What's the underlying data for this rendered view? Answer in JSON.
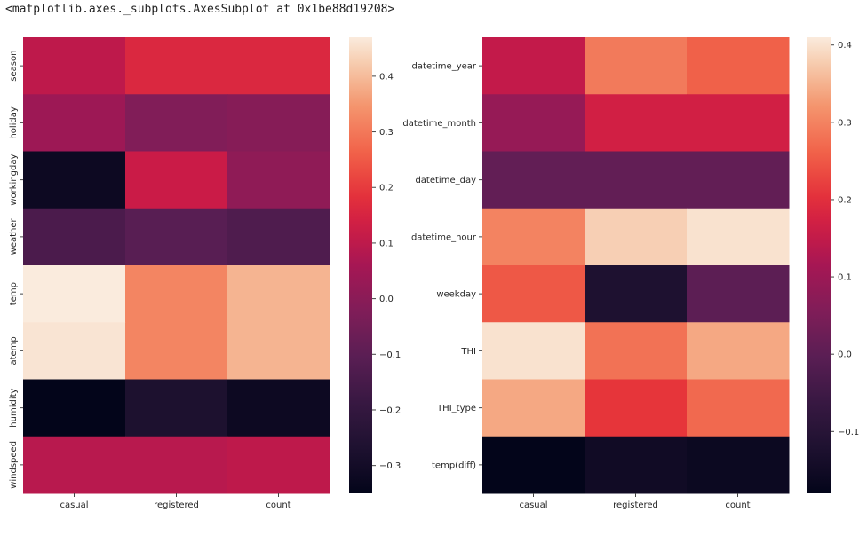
{
  "output_text": "<matplotlib.axes._subplots.AxesSubplot at 0x1be88d19208>",
  "colormap": "rocket",
  "chart_data": [
    {
      "type": "heatmap",
      "title": "",
      "x_categories": [
        "casual",
        "registered",
        "count"
      ],
      "y_categories": [
        "season",
        "holiday",
        "workingday",
        "weather",
        "temp",
        "atemp",
        "humidity",
        "windspeed"
      ],
      "values": [
        [
          0.1,
          0.16,
          0.16
        ],
        [
          0.04,
          -0.02,
          -0.01
        ],
        [
          -0.32,
          0.12,
          0.01
        ],
        [
          -0.14,
          -0.11,
          -0.13
        ],
        [
          0.47,
          0.32,
          0.39
        ],
        [
          0.46,
          0.32,
          0.39
        ],
        [
          -0.35,
          -0.27,
          -0.32
        ],
        [
          0.09,
          0.09,
          0.1
        ]
      ],
      "colorbar": {
        "vmin": -0.35,
        "vmax": 0.47,
        "ticks": [
          -0.3,
          -0.2,
          -0.1,
          0.0,
          0.1,
          0.2,
          0.3,
          0.4
        ],
        "tick_labels": [
          "−0.3",
          "−0.2",
          "−0.1",
          "0.0",
          "0.1",
          "0.2",
          "0.3",
          "0.4"
        ]
      }
    },
    {
      "type": "heatmap",
      "title": "",
      "x_categories": [
        "casual",
        "registered",
        "count"
      ],
      "y_categories": [
        "datetime_year",
        "datetime_month",
        "datetime_day",
        "datetime_hour",
        "weekday",
        "THI",
        "THI_type",
        "temp(diff)"
      ],
      "values": [
        [
          0.15,
          0.29,
          0.26
        ],
        [
          0.09,
          0.17,
          0.17
        ],
        [
          0.01,
          0.01,
          0.01
        ],
        [
          0.3,
          0.38,
          0.4
        ],
        [
          0.25,
          -0.12,
          0.0
        ],
        [
          0.4,
          0.28,
          0.34
        ],
        [
          0.34,
          0.21,
          0.27
        ],
        [
          -0.18,
          -0.15,
          -0.16
        ]
      ],
      "colorbar": {
        "vmin": -0.18,
        "vmax": 0.41,
        "ticks": [
          -0.1,
          0.0,
          0.1,
          0.2,
          0.3,
          0.4
        ],
        "tick_labels": [
          "−0.1",
          "0.0",
          "0.1",
          "0.2",
          "0.3",
          "0.4"
        ]
      }
    }
  ]
}
